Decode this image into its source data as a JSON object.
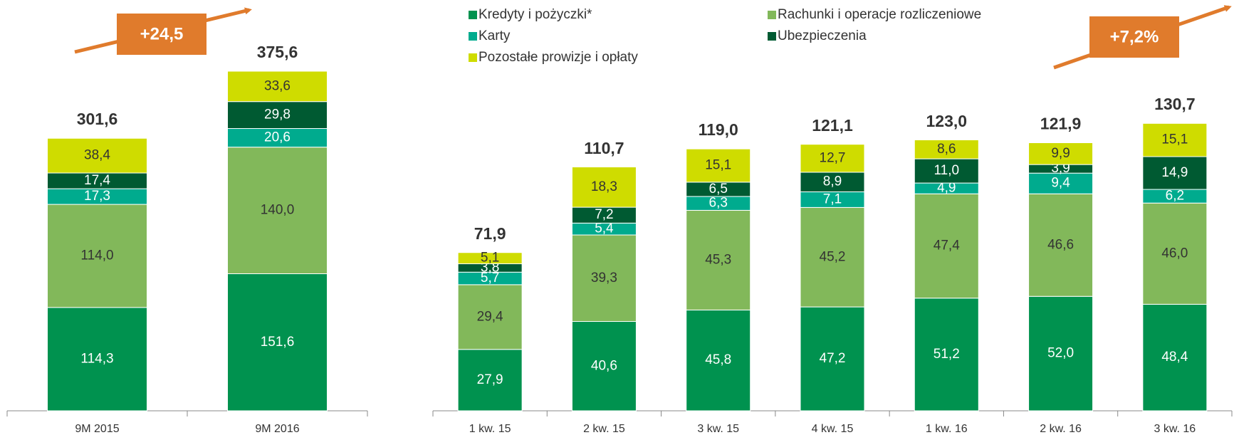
{
  "chart_data": [
    {
      "type": "stacked_bar",
      "categories": [
        "9M 2015",
        "9M 2016"
      ],
      "series": [
        {
          "color": "#00924f",
          "values": [
            114.3,
            151.6
          ],
          "value_labels": [
            "114,3",
            "151,6"
          ]
        },
        {
          "color": "#82b85a",
          "values": [
            114.0,
            140.0
          ],
          "value_labels": [
            "114,0",
            "140,0"
          ]
        },
        {
          "color": "#00ab8e",
          "values": [
            17.3,
            20.6
          ],
          "value_labels": [
            "17,3",
            "20,6"
          ]
        },
        {
          "color": "#005a32",
          "values": [
            17.4,
            29.8
          ],
          "value_labels": [
            "17,4",
            "29,8"
          ]
        },
        {
          "color": "#cfdc00",
          "values": [
            38.4,
            33.6
          ],
          "value_labels": [
            "38,4",
            "33,6"
          ]
        }
      ],
      "totals": [
        301.6,
        375.6
      ],
      "total_labels": [
        "301,6",
        "375,6"
      ],
      "annotation": "+24,5"
    },
    {
      "type": "stacked_bar",
      "categories": [
        "1 kw. 15",
        "2 kw. 15",
        "3 kw. 15",
        "4 kw. 15",
        "1 kw. 16",
        "2 kw. 16",
        "3 kw. 16"
      ],
      "series": [
        {
          "name": "Kredyty i pożyczki*",
          "color": "#00924f",
          "values": [
            27.9,
            40.6,
            45.8,
            47.2,
            51.2,
            52.0,
            48.4
          ],
          "value_labels": [
            "27,9",
            "40,6",
            "45,8",
            "47,2",
            "51,2",
            "52,0",
            "48,4"
          ]
        },
        {
          "name": "Rachunki i operacje rozliczeniowe",
          "color": "#82b85a",
          "values": [
            29.4,
            39.3,
            45.3,
            45.2,
            47.4,
            46.6,
            46.0
          ],
          "value_labels": [
            "29,4",
            "39,3",
            "45,3",
            "45,2",
            "47,4",
            "46,6",
            "46,0"
          ]
        },
        {
          "name": "Karty",
          "color": "#00ab8e",
          "values": [
            5.7,
            5.4,
            6.3,
            7.1,
            4.9,
            9.4,
            6.2
          ],
          "value_labels": [
            "5,7",
            "5,4",
            "6,3",
            "7,1",
            "4,9",
            "9,4",
            "6,2"
          ]
        },
        {
          "name": "Ubezpieczenia",
          "color": "#005a32",
          "values": [
            3.8,
            7.2,
            6.5,
            8.9,
            11.0,
            3.9,
            14.9
          ],
          "value_labels": [
            "3,8",
            "7,2",
            "6,5",
            "8,9",
            "11,0",
            "3,9",
            "14,9"
          ]
        },
        {
          "name": "Pozostałe prowizje i opłaty",
          "color": "#cfdc00",
          "values": [
            5.1,
            18.3,
            15.1,
            12.7,
            8.6,
            9.9,
            15.1
          ],
          "value_labels": [
            "5,1",
            "18,3",
            "15,1",
            "12,7",
            "8,6",
            "9,9",
            "15,1"
          ]
        }
      ],
      "totals": [
        71.9,
        110.7,
        119.0,
        121.1,
        123.0,
        121.9,
        130.7
      ],
      "total_labels": [
        "71,9",
        "110,7",
        "119,0",
        "121,1",
        "123,0",
        "121,9",
        "130,7"
      ],
      "annotation": "+7,2%"
    }
  ]
}
